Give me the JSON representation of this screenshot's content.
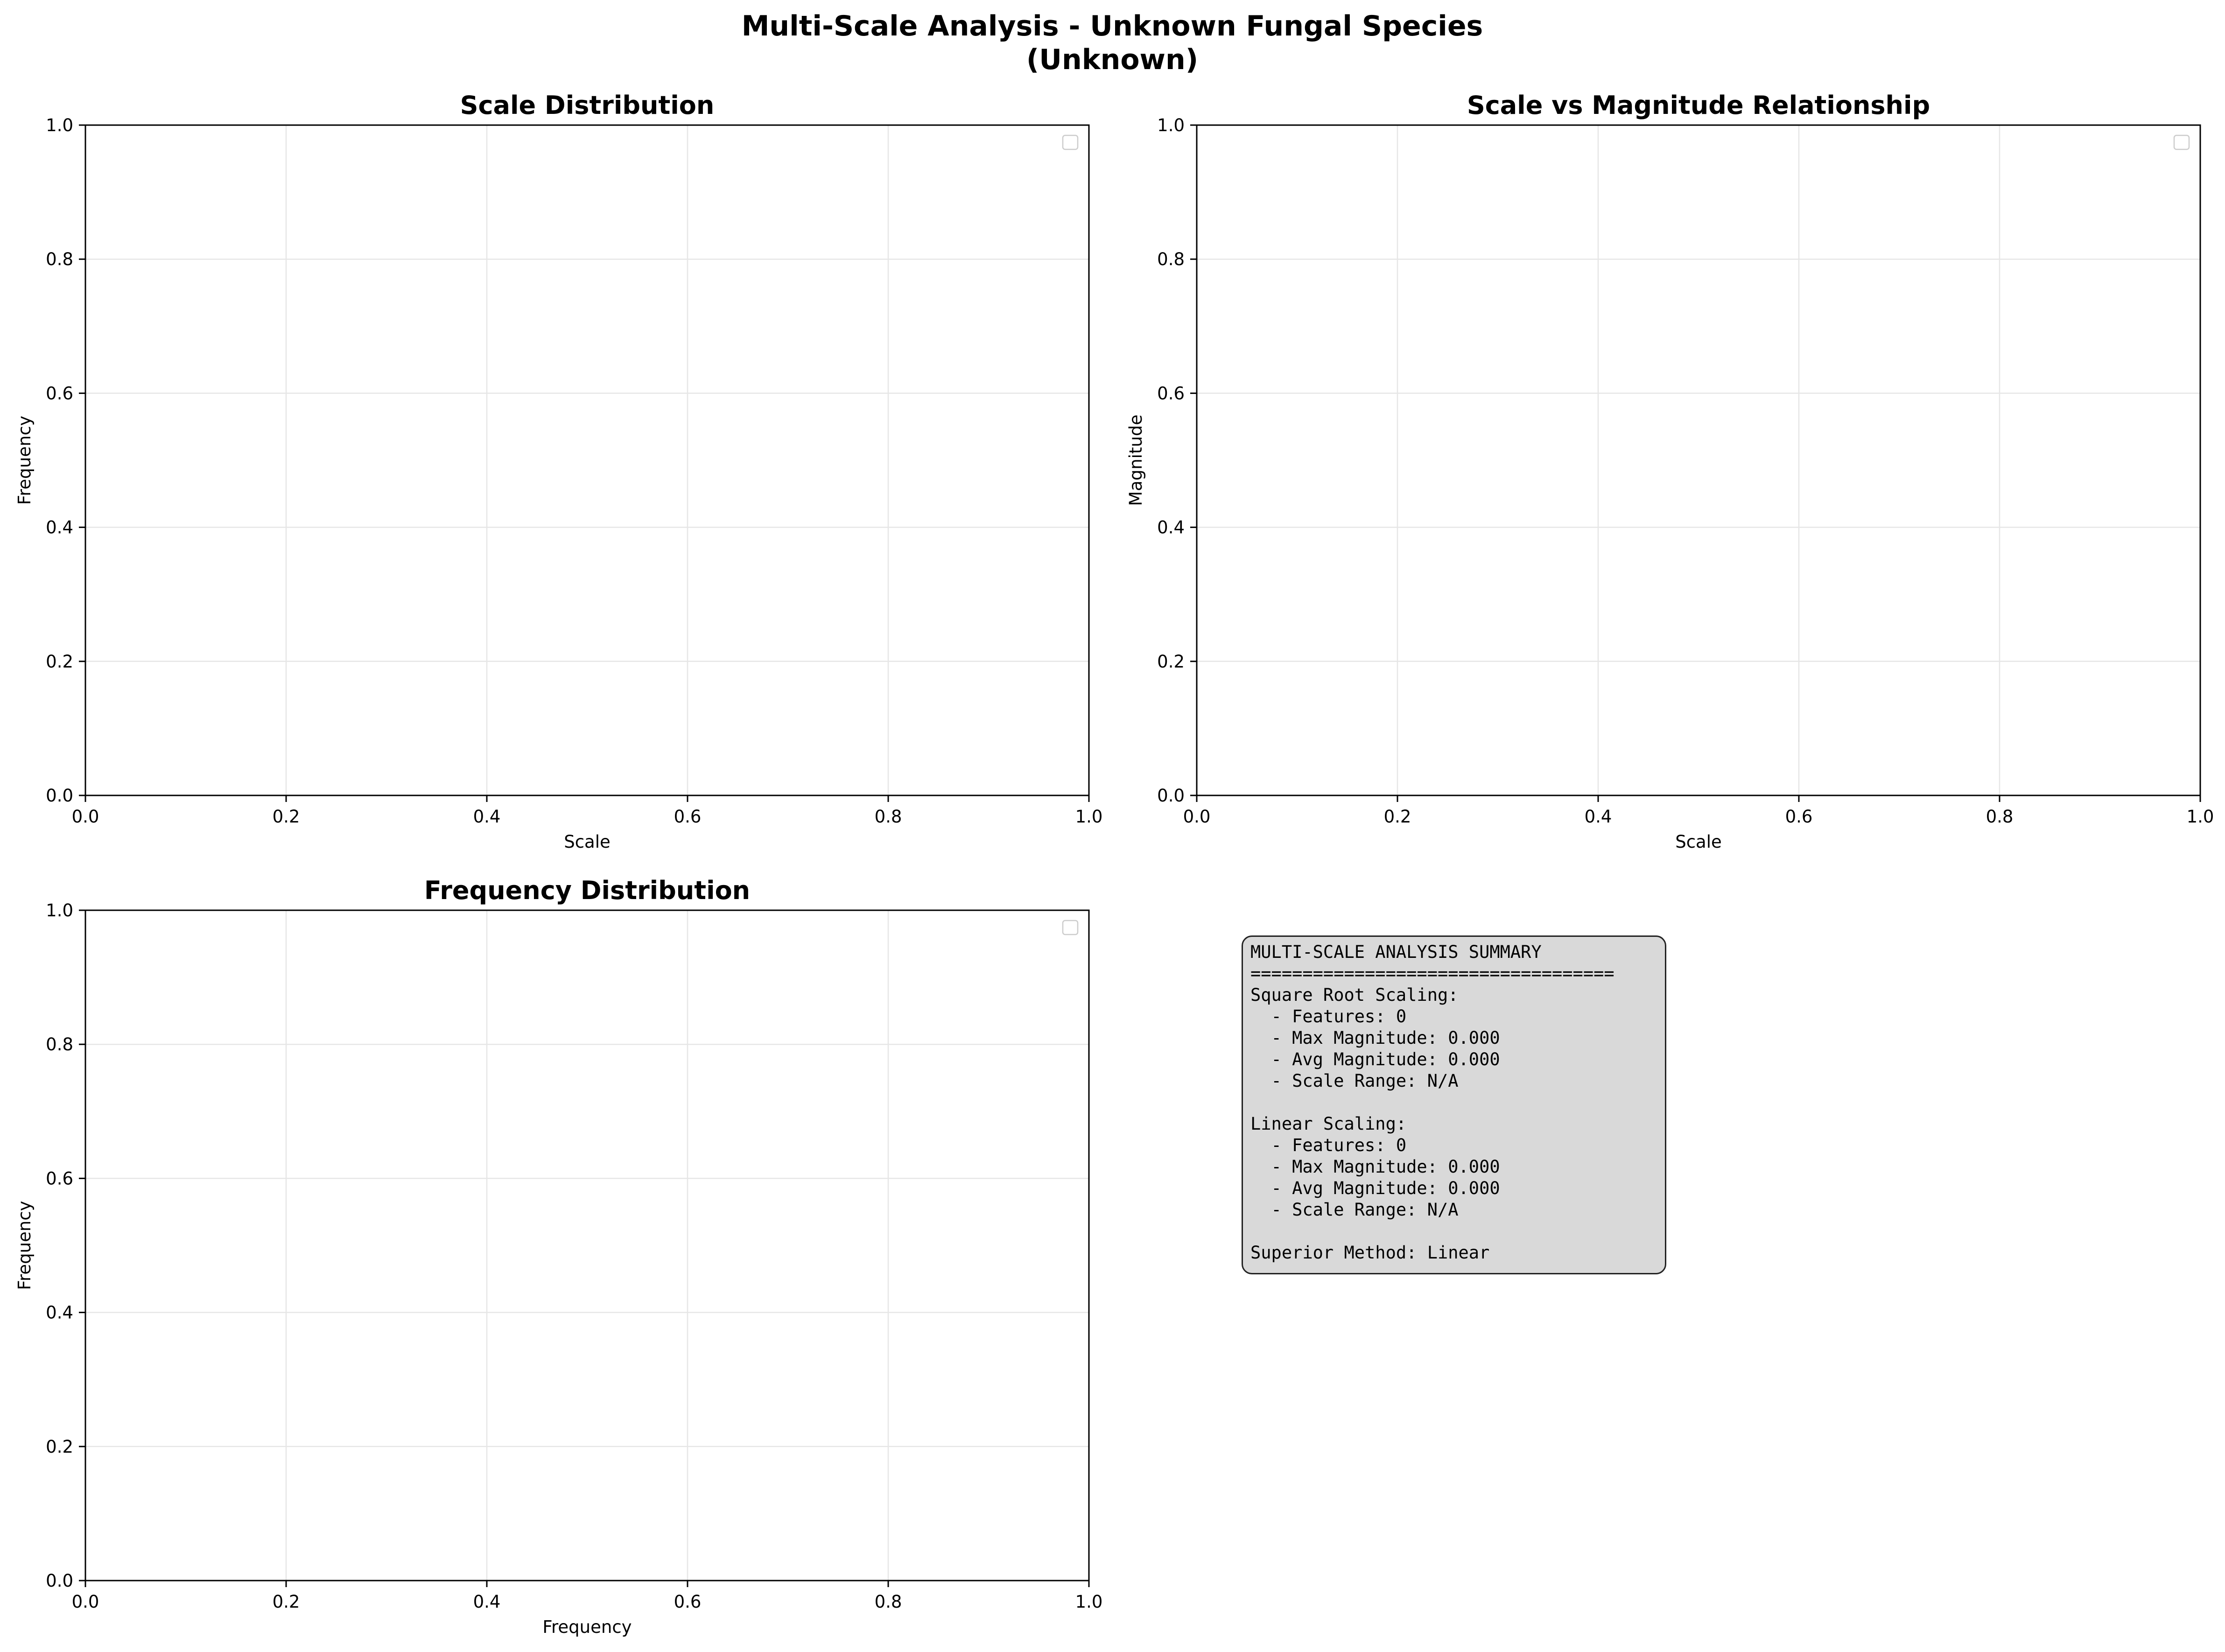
{
  "figure": {
    "suptitle_line1": "Multi-Scale Analysis - Unknown Fungal Species",
    "suptitle_line2": "(Unknown)"
  },
  "chart_data": [
    {
      "type": "bar",
      "title": "Scale Distribution",
      "xlabel": "Scale",
      "ylabel": "Frequency",
      "xlim": [
        0,
        1
      ],
      "ylim": [
        0,
        1
      ],
      "xticks": [
        "0.0",
        "0.2",
        "0.4",
        "0.6",
        "0.8",
        "1.0"
      ],
      "yticks": [
        "0.0",
        "0.2",
        "0.4",
        "0.6",
        "0.8",
        "1.0"
      ],
      "grid": true,
      "legend": "upper-right",
      "series": []
    },
    {
      "type": "scatter",
      "title": "Scale vs Magnitude Relationship",
      "xlabel": "Scale",
      "ylabel": "Magnitude",
      "xlim": [
        0,
        1
      ],
      "ylim": [
        0,
        1
      ],
      "xticks": [
        "0.0",
        "0.2",
        "0.4",
        "0.6",
        "0.8",
        "1.0"
      ],
      "yticks": [
        "0.0",
        "0.2",
        "0.4",
        "0.6",
        "0.8",
        "1.0"
      ],
      "grid": true,
      "legend": "upper-right",
      "series": []
    },
    {
      "type": "bar",
      "title": "Frequency Distribution",
      "xlabel": "Frequency",
      "ylabel": "Frequency",
      "xlim": [
        0,
        1
      ],
      "ylim": [
        0,
        1
      ],
      "xticks": [
        "0.0",
        "0.2",
        "0.4",
        "0.6",
        "0.8",
        "1.0"
      ],
      "yticks": [
        "0.0",
        "0.2",
        "0.4",
        "0.6",
        "0.8",
        "1.0"
      ],
      "grid": true,
      "legend": "upper-right",
      "series": []
    }
  ],
  "summary": {
    "lines": [
      "MULTI-SCALE ANALYSIS SUMMARY",
      "===================================",
      "Square Root Scaling:",
      "  - Features: 0",
      "  - Max Magnitude: 0.000",
      "  - Avg Magnitude: 0.000",
      "  - Scale Range: N/A",
      "",
      "Linear Scaling:",
      "  - Features: 0",
      "  - Max Magnitude: 0.000",
      "  - Avg Magnitude: 0.000",
      "  - Scale Range: N/A",
      "",
      "Superior Method: Linear"
    ]
  }
}
